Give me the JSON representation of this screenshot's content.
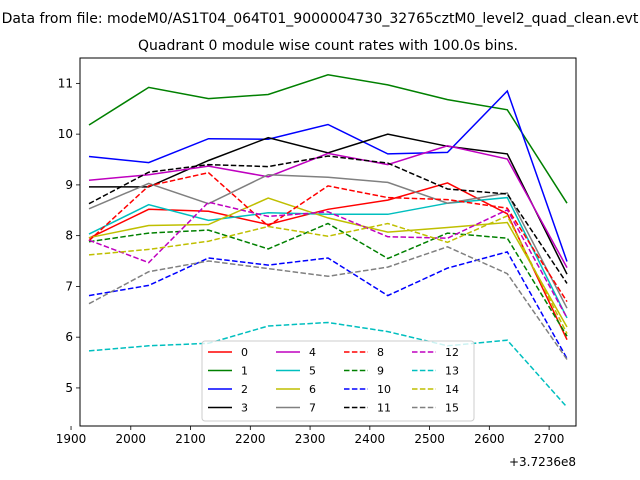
{
  "chart_data": {
    "type": "line",
    "suptitle": "Data from file: modeM0/AS1T04_064T01_9000004730_32765cztM0_level2_quad_clean.evt",
    "title": "Quadrant 0 module wise count rates with 100.0s bins.",
    "xlabel": "",
    "ylabel": "",
    "x_offset_label": "+3.7236e8",
    "xlim": [
      1915,
      2745
    ],
    "ylim": [
      4.25,
      11.5
    ],
    "xticks": [
      1900,
      2000,
      2100,
      2200,
      2300,
      2400,
      2500,
      2600,
      2700
    ],
    "yticks": [
      5,
      6,
      7,
      8,
      9,
      10,
      11
    ],
    "grid": false,
    "legend_position": "lower-center",
    "x": [
      1930,
      2030,
      2130,
      2230,
      2330,
      2430,
      2530,
      2630,
      2730
    ],
    "series": [
      {
        "name": "0",
        "color": "#ff0000",
        "dash": "solid",
        "values": [
          7.95,
          8.52,
          8.48,
          8.22,
          8.52,
          8.7,
          9.04,
          8.43,
          5.95
        ]
      },
      {
        "name": "1",
        "color": "#008000",
        "dash": "solid",
        "values": [
          10.18,
          10.92,
          10.7,
          10.78,
          11.17,
          10.97,
          10.68,
          10.48,
          8.64
        ]
      },
      {
        "name": "2",
        "color": "#0000ff",
        "dash": "solid",
        "values": [
          9.56,
          9.44,
          9.91,
          9.9,
          10.19,
          9.61,
          9.64,
          10.85,
          7.49
        ]
      },
      {
        "name": "3",
        "color": "#000000",
        "dash": "solid",
        "values": [
          8.96,
          8.96,
          9.48,
          9.93,
          9.63,
          10.0,
          9.76,
          9.61,
          7.24
        ]
      },
      {
        "name": "4",
        "color": "#bf00bf",
        "dash": "solid",
        "values": [
          9.09,
          9.2,
          9.37,
          9.16,
          9.62,
          9.4,
          9.77,
          9.51,
          7.37
        ]
      },
      {
        "name": "5",
        "color": "#00bfbf",
        "dash": "solid",
        "values": [
          8.03,
          8.61,
          8.3,
          8.45,
          8.42,
          8.42,
          8.64,
          8.75,
          6.38
        ]
      },
      {
        "name": "6",
        "color": "#bfbf00",
        "dash": "solid",
        "values": [
          7.96,
          8.2,
          8.22,
          8.74,
          8.35,
          8.07,
          8.16,
          8.26,
          6.2
        ]
      },
      {
        "name": "7",
        "color": "#808080",
        "dash": "solid",
        "values": [
          8.53,
          9.03,
          8.63,
          9.2,
          9.15,
          9.05,
          8.64,
          8.84,
          6.57
        ]
      },
      {
        "name": "8",
        "color": "#ff0000",
        "dash": "dashed",
        "values": [
          7.9,
          8.98,
          9.24,
          8.19,
          8.98,
          8.75,
          8.71,
          8.54,
          6.7
        ]
      },
      {
        "name": "9",
        "color": "#008000",
        "dash": "dashed",
        "values": [
          7.88,
          8.05,
          8.11,
          7.74,
          8.24,
          7.55,
          8.05,
          7.95,
          6.02
        ]
      },
      {
        "name": "10",
        "color": "#0000ff",
        "dash": "dashed",
        "values": [
          6.82,
          7.02,
          7.56,
          7.42,
          7.56,
          6.82,
          7.36,
          7.68,
          5.58
        ]
      },
      {
        "name": "11",
        "color": "#000000",
        "dash": "dashed",
        "values": [
          8.63,
          9.25,
          9.4,
          9.36,
          9.57,
          9.43,
          8.92,
          8.82,
          7.06
        ]
      },
      {
        "name": "12",
        "color": "#bf00bf",
        "dash": "dashed",
        "values": [
          7.91,
          7.47,
          8.66,
          8.38,
          8.47,
          7.98,
          7.95,
          8.51,
          6.38
        ]
      },
      {
        "name": "13",
        "color": "#00bfbf",
        "dash": "dashed",
        "values": [
          5.73,
          5.83,
          5.88,
          6.22,
          6.29,
          6.11,
          5.83,
          5.94,
          4.62
        ]
      },
      {
        "name": "14",
        "color": "#bfbf00",
        "dash": "dashed",
        "values": [
          7.62,
          7.73,
          7.89,
          8.18,
          7.99,
          8.24,
          7.87,
          8.39,
          6.07
        ]
      },
      {
        "name": "15",
        "color": "#808080",
        "dash": "dashed",
        "values": [
          6.66,
          7.29,
          7.5,
          7.35,
          7.2,
          7.38,
          7.78,
          7.25,
          5.56
        ]
      }
    ]
  }
}
